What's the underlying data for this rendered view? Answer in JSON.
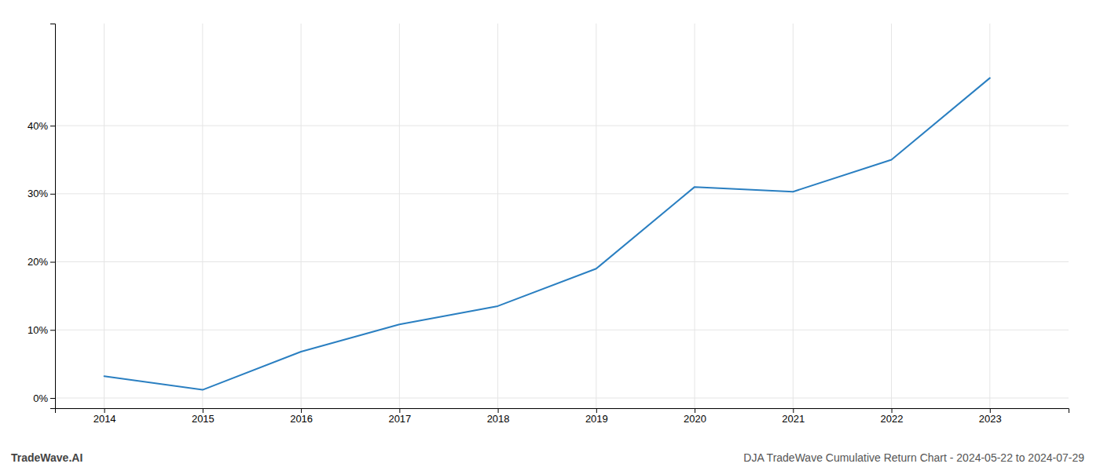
{
  "chart_data": {
    "type": "line",
    "title": "DJA TradeWave Cumulative Return Chart - 2024-05-22 to 2024-07-29",
    "annotations": [
      "TradeWave.AI"
    ],
    "x": [
      2014,
      2015,
      2016,
      2017,
      2018,
      2019,
      2020,
      2021,
      2022,
      2023
    ],
    "values": [
      3.2,
      1.2,
      6.8,
      10.8,
      13.5,
      19.0,
      31.0,
      30.3,
      35.0,
      47.0
    ],
    "color": "#2a7fc1",
    "xlim": [
      2013.5,
      2023.8
    ],
    "ylim": [
      -1.5,
      55
    ],
    "xticks": [
      2014,
      2015,
      2016,
      2017,
      2018,
      2019,
      2020,
      2021,
      2022,
      2023
    ],
    "yticks": [
      {
        "value": 0,
        "label": "0%"
      },
      {
        "value": 10,
        "label": "10%"
      },
      {
        "value": 20,
        "label": "20%"
      },
      {
        "value": 30,
        "label": "30%"
      },
      {
        "value": 40,
        "label": "40%"
      }
    ],
    "grid": true
  }
}
